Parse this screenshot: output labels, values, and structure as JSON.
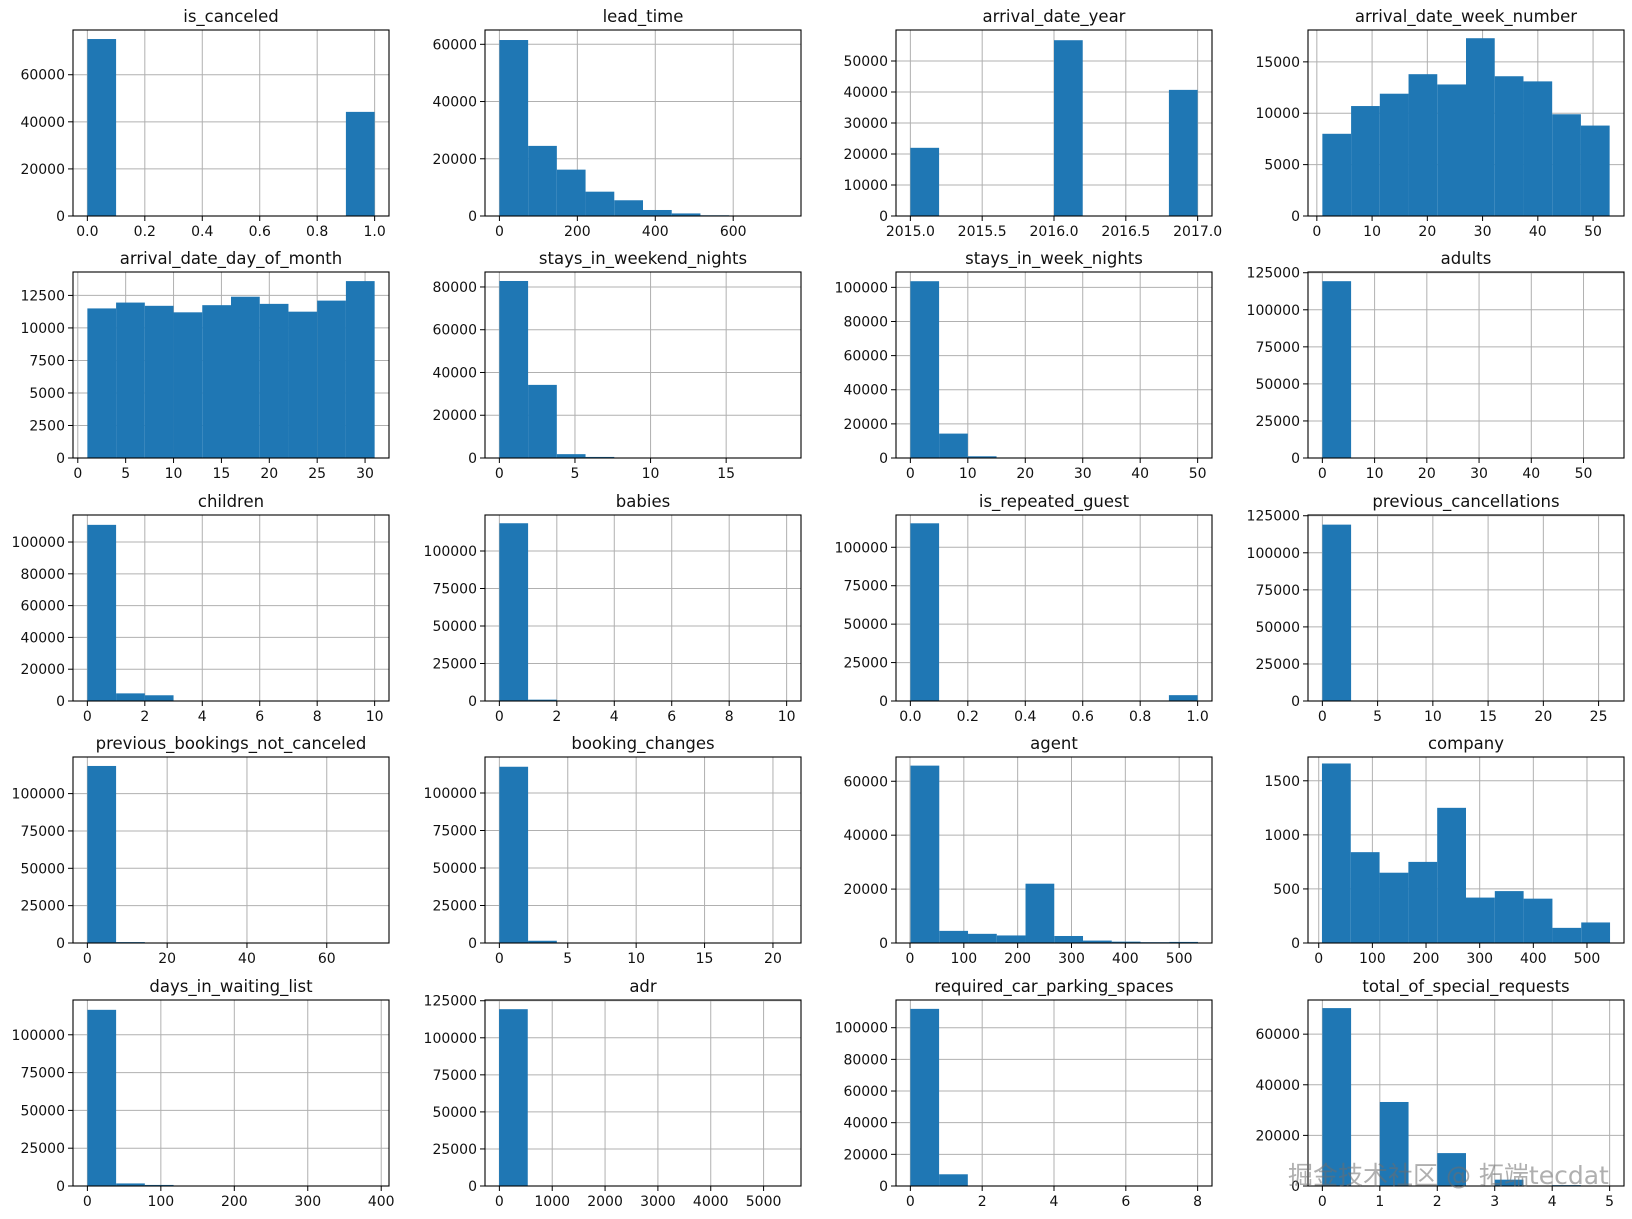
{
  "figure": {
    "bar_color": "#1f77b4",
    "grid_color": "#b0b0b0"
  },
  "watermark": "掘金技术社区 @ 拓端tecdat",
  "chart_data": [
    {
      "type": "bar",
      "title": "is_canceled",
      "xlim": [
        -0.05,
        1.05
      ],
      "ylim": [
        0,
        79000
      ],
      "xticks": [
        0,
        0.2,
        0.4,
        0.6,
        0.8,
        1.0
      ],
      "xtick_labels": [
        "0.0",
        "0.2",
        "0.4",
        "0.6",
        "0.8",
        "1.0"
      ],
      "yticks": [
        0,
        20000,
        40000,
        60000
      ],
      "ytick_labels": [
        "0",
        "20000",
        "40000",
        "60000"
      ],
      "bin_edges": [
        0,
        0.1,
        0.2,
        0.3,
        0.4,
        0.5,
        0.6,
        0.7,
        0.8,
        0.9,
        1.0
      ],
      "values": [
        75166,
        0,
        0,
        0,
        0,
        0,
        0,
        0,
        0,
        44224
      ]
    },
    {
      "type": "bar",
      "title": "lead_time",
      "xlim": [
        -37,
        774
      ],
      "ylim": [
        0,
        65000
      ],
      "xticks": [
        0,
        200,
        400,
        600
      ],
      "xtick_labels": [
        "0",
        "200",
        "400",
        "600"
      ],
      "yticks": [
        0,
        20000,
        40000,
        60000
      ],
      "ytick_labels": [
        "0",
        "20000",
        "40000",
        "60000"
      ],
      "bin_edges": [
        0,
        73.7,
        147.4,
        221.1,
        294.8,
        368.5,
        442.2,
        515.9,
        589.6,
        663.3,
        737
      ],
      "values": [
        61500,
        24500,
        16200,
        8500,
        5500,
        2100,
        900,
        250,
        100,
        60
      ]
    },
    {
      "type": "bar",
      "title": "arrival_date_year",
      "xlim": [
        2014.9,
        2017.1
      ],
      "ylim": [
        0,
        60000
      ],
      "xticks": [
        2015.0,
        2015.5,
        2016.0,
        2016.5,
        2017.0
      ],
      "xtick_labels": [
        "2015.0",
        "2015.5",
        "2016.0",
        "2016.5",
        "2017.0"
      ],
      "yticks": [
        0,
        10000,
        20000,
        30000,
        40000,
        50000
      ],
      "ytick_labels": [
        "0",
        "10000",
        "20000",
        "30000",
        "40000",
        "50000"
      ],
      "bin_edges": [
        2015.0,
        2015.2,
        2015.4,
        2015.6,
        2015.8,
        2016.0,
        2016.2,
        2016.4,
        2016.6,
        2016.8,
        2017.0
      ],
      "values": [
        21996,
        0,
        0,
        0,
        0,
        56707,
        0,
        0,
        0,
        40687
      ]
    },
    {
      "type": "bar",
      "title": "arrival_date_week_number",
      "xlim": [
        -1.6,
        55.6
      ],
      "ylim": [
        0,
        18100
      ],
      "xticks": [
        0,
        10,
        20,
        30,
        40,
        50
      ],
      "xtick_labels": [
        "0",
        "10",
        "20",
        "30",
        "40",
        "50"
      ],
      "yticks": [
        0,
        5000,
        10000,
        15000
      ],
      "ytick_labels": [
        "0",
        "5000",
        "10000",
        "15000"
      ],
      "bin_edges": [
        1,
        6.2,
        11.4,
        16.6,
        21.8,
        27,
        32.2,
        37.4,
        42.6,
        47.8,
        53
      ],
      "values": [
        8000,
        10700,
        11900,
        13800,
        12800,
        17300,
        13600,
        13100,
        9900,
        8800
      ]
    },
    {
      "type": "bar",
      "title": "arrival_date_day_of_month",
      "xlim": [
        -0.5,
        32.5
      ],
      "ylim": [
        0,
        14300
      ],
      "xticks": [
        0,
        5,
        10,
        15,
        20,
        25,
        30
      ],
      "xtick_labels": [
        "0",
        "5",
        "10",
        "15",
        "20",
        "25",
        "30"
      ],
      "yticks": [
        0,
        2500,
        5000,
        7500,
        10000,
        12500
      ],
      "ytick_labels": [
        "0",
        "2500",
        "5000",
        "7500",
        "10000",
        "12500"
      ],
      "bin_edges": [
        1,
        4,
        7,
        10,
        13,
        16,
        19,
        22,
        25,
        28,
        31
      ],
      "values": [
        11500,
        11950,
        11700,
        11200,
        11750,
        12400,
        11850,
        11250,
        12100,
        13600
      ]
    },
    {
      "type": "bar",
      "title": "stays_in_weekend_nights",
      "xlim": [
        -0.95,
        19.95
      ],
      "ylim": [
        0,
        87000
      ],
      "xticks": [
        0,
        5,
        10,
        15
      ],
      "xtick_labels": [
        "0",
        "5",
        "10",
        "15"
      ],
      "yticks": [
        0,
        20000,
        40000,
        60000,
        80000
      ],
      "ytick_labels": [
        "0",
        "20000",
        "40000",
        "60000",
        "80000"
      ],
      "bin_edges": [
        0,
        1.9,
        3.8,
        5.7,
        7.6,
        9.5,
        11.4,
        13.3,
        15.2,
        17.1,
        19
      ],
      "values": [
        82800,
        34200,
        1800,
        500,
        60,
        40,
        20,
        10,
        5,
        5
      ]
    },
    {
      "type": "bar",
      "title": "stays_in_week_nights",
      "xlim": [
        -2.5,
        52.5
      ],
      "ylim": [
        0,
        109000
      ],
      "xticks": [
        0,
        10,
        20,
        30,
        40,
        50
      ],
      "xtick_labels": [
        "0",
        "10",
        "20",
        "30",
        "40",
        "50"
      ],
      "yticks": [
        0,
        20000,
        40000,
        60000,
        80000,
        100000
      ],
      "ytick_labels": [
        "0",
        "20000",
        "40000",
        "60000",
        "80000",
        "100000"
      ],
      "bin_edges": [
        0,
        5,
        10,
        15,
        20,
        25,
        30,
        35,
        40,
        45,
        50
      ],
      "values": [
        103600,
        14300,
        1000,
        300,
        100,
        60,
        30,
        10,
        5,
        5
      ]
    },
    {
      "type": "bar",
      "title": "adults",
      "xlim": [
        -2.75,
        57.75
      ],
      "ylim": [
        0,
        125500
      ],
      "xticks": [
        0,
        10,
        20,
        30,
        40,
        50
      ],
      "xtick_labels": [
        "0",
        "10",
        "20",
        "30",
        "40",
        "50"
      ],
      "yticks": [
        0,
        25000,
        50000,
        75000,
        100000,
        125000
      ],
      "ytick_labels": [
        "0",
        "25000",
        "50000",
        "75000",
        "100000",
        "125000"
      ],
      "bin_edges": [
        0,
        5.5,
        11,
        16.5,
        22,
        27.5,
        33,
        38.5,
        44,
        49.5,
        55
      ],
      "values": [
        119300,
        0,
        0,
        0,
        50,
        60,
        0,
        0,
        0,
        10
      ]
    },
    {
      "type": "bar",
      "title": "children",
      "xlim": [
        -0.5,
        10.5
      ],
      "ylim": [
        0,
        117000
      ],
      "xticks": [
        0,
        2,
        4,
        6,
        8,
        10
      ],
      "xtick_labels": [
        "0",
        "2",
        "4",
        "6",
        "8",
        "10"
      ],
      "yticks": [
        0,
        20000,
        40000,
        60000,
        80000,
        100000
      ],
      "ytick_labels": [
        "0",
        "20000",
        "40000",
        "60000",
        "80000",
        "100000"
      ],
      "bin_edges": [
        0,
        1,
        2,
        3,
        4,
        5,
        6,
        7,
        8,
        9,
        10
      ],
      "values": [
        110800,
        4800,
        3600,
        80,
        0,
        0,
        0,
        0,
        0,
        2
      ]
    },
    {
      "type": "bar",
      "title": "babies",
      "xlim": [
        -0.5,
        10.5
      ],
      "ylim": [
        0,
        124000
      ],
      "xticks": [
        0,
        2,
        4,
        6,
        8,
        10
      ],
      "xtick_labels": [
        "0",
        "2",
        "4",
        "6",
        "8",
        "10"
      ],
      "yticks": [
        0,
        25000,
        50000,
        75000,
        100000
      ],
      "ytick_labels": [
        "0",
        "25000",
        "50000",
        "75000",
        "100000"
      ],
      "bin_edges": [
        0,
        1,
        2,
        3,
        4,
        5,
        6,
        7,
        8,
        9,
        10
      ],
      "values": [
        118500,
        900,
        20,
        0,
        0,
        0,
        0,
        0,
        0,
        2
      ]
    },
    {
      "type": "bar",
      "title": "is_repeated_guest",
      "xlim": [
        -0.05,
        1.05
      ],
      "ylim": [
        0,
        121000
      ],
      "xticks": [
        0,
        0.2,
        0.4,
        0.6,
        0.8,
        1.0
      ],
      "xtick_labels": [
        "0.0",
        "0.2",
        "0.4",
        "0.6",
        "0.8",
        "1.0"
      ],
      "yticks": [
        0,
        25000,
        50000,
        75000,
        100000
      ],
      "ytick_labels": [
        "0",
        "25000",
        "50000",
        "75000",
        "100000"
      ],
      "bin_edges": [
        0,
        0.1,
        0.2,
        0.3,
        0.4,
        0.5,
        0.6,
        0.7,
        0.8,
        0.9,
        1.0
      ],
      "values": [
        115600,
        0,
        0,
        0,
        0,
        0,
        0,
        0,
        0,
        3800
      ]
    },
    {
      "type": "bar",
      "title": "previous_cancellations",
      "xlim": [
        -1.3,
        27.3
      ],
      "ylim": [
        0,
        125500
      ],
      "xticks": [
        0,
        5,
        10,
        15,
        20,
        25
      ],
      "xtick_labels": [
        "0",
        "5",
        "10",
        "15",
        "20",
        "25"
      ],
      "yticks": [
        0,
        25000,
        50000,
        75000,
        100000,
        125000
      ],
      "ytick_labels": [
        "0",
        "25000",
        "50000",
        "75000",
        "100000",
        "125000"
      ],
      "bin_edges": [
        0,
        2.6,
        5.2,
        7.8,
        10.4,
        13,
        15.6,
        18.2,
        20.8,
        23.4,
        26
      ],
      "values": [
        119000,
        300,
        30,
        0,
        30,
        20,
        0,
        0,
        0,
        30
      ]
    },
    {
      "type": "bar",
      "title": "previous_bookings_not_canceled",
      "xlim": [
        -3.6,
        75.6
      ],
      "ylim": [
        0,
        124500
      ],
      "xticks": [
        0,
        20,
        40,
        60
      ],
      "xtick_labels": [
        "0",
        "20",
        "40",
        "60"
      ],
      "yticks": [
        0,
        25000,
        50000,
        75000,
        100000
      ],
      "ytick_labels": [
        "0",
        "25000",
        "50000",
        "75000",
        "100000"
      ],
      "bin_edges": [
        0,
        7.2,
        14.4,
        21.6,
        28.8,
        36,
        43.2,
        50.4,
        57.6,
        64.8,
        72
      ],
      "values": [
        118500,
        600,
        150,
        50,
        30,
        20,
        10,
        5,
        5,
        5
      ]
    },
    {
      "type": "bar",
      "title": "booking_changes",
      "xlim": [
        -1.05,
        22.05
      ],
      "ylim": [
        0,
        124000
      ],
      "xticks": [
        0,
        5,
        10,
        15,
        20
      ],
      "xtick_labels": [
        "0",
        "5",
        "10",
        "15",
        "20"
      ],
      "yticks": [
        0,
        25000,
        50000,
        75000,
        100000
      ],
      "ytick_labels": [
        "0",
        "25000",
        "50000",
        "75000",
        "100000"
      ],
      "bin_edges": [
        0,
        2.1,
        4.2,
        6.3,
        8.4,
        10.5,
        12.6,
        14.7,
        16.8,
        18.9,
        21
      ],
      "values": [
        117500,
        1500,
        300,
        60,
        20,
        10,
        5,
        2,
        2,
        2
      ]
    },
    {
      "type": "bar",
      "title": "agent",
      "xlim": [
        -26,
        561
      ],
      "ylim": [
        0,
        69000
      ],
      "xticks": [
        0,
        100,
        200,
        300,
        400,
        500
      ],
      "xtick_labels": [
        "0",
        "100",
        "200",
        "300",
        "400",
        "500"
      ],
      "yticks": [
        0,
        20000,
        40000,
        60000
      ],
      "ytick_labels": [
        "0",
        "20000",
        "40000",
        "60000"
      ],
      "bin_edges": [
        1,
        54.4,
        107.8,
        161.2,
        214.6,
        268,
        321.4,
        374.8,
        428.2,
        481.6,
        535
      ],
      "values": [
        65800,
        4500,
        3400,
        2800,
        22000,
        2600,
        900,
        500,
        300,
        400
      ]
    },
    {
      "type": "bar",
      "title": "company",
      "xlim": [
        -20,
        569
      ],
      "ylim": [
        0,
        1720
      ],
      "xticks": [
        0,
        100,
        200,
        300,
        400,
        500
      ],
      "xtick_labels": [
        "0",
        "100",
        "200",
        "300",
        "400",
        "500"
      ],
      "yticks": [
        0,
        500,
        1000,
        1500
      ],
      "ytick_labels": [
        "0",
        "500",
        "1000",
        "1500"
      ],
      "bin_edges": [
        6,
        59.7,
        113.4,
        167.1,
        220.8,
        274.5,
        328.2,
        381.9,
        435.6,
        489.3,
        543
      ],
      "values": [
        1660,
        840,
        650,
        750,
        1250,
        420,
        480,
        410,
        140,
        190
      ]
    },
    {
      "type": "bar",
      "title": "days_in_waiting_list",
      "xlim": [
        -19.6,
        410.6
      ],
      "ylim": [
        0,
        123000
      ],
      "xticks": [
        0,
        100,
        200,
        300,
        400
      ],
      "xtick_labels": [
        "0",
        "100",
        "200",
        "300",
        "400"
      ],
      "yticks": [
        0,
        25000,
        50000,
        75000,
        100000
      ],
      "ytick_labels": [
        "0",
        "25000",
        "50000",
        "75000",
        "100000"
      ],
      "bin_edges": [
        0,
        39.1,
        78.2,
        117.3,
        156.4,
        195.5,
        234.6,
        273.7,
        312.8,
        351.9,
        391
      ],
      "values": [
        116500,
        1700,
        700,
        200,
        50,
        40,
        20,
        20,
        10,
        20
      ]
    },
    {
      "type": "bar",
      "title": "adr",
      "xlim": [
        -272,
        5708
      ],
      "ylim": [
        0,
        125500
      ],
      "xticks": [
        0,
        1000,
        2000,
        3000,
        4000,
        5000
      ],
      "xtick_labels": [
        "0",
        "1000",
        "2000",
        "3000",
        "4000",
        "5000"
      ],
      "yticks": [
        0,
        25000,
        50000,
        75000,
        100000,
        125000
      ],
      "ytick_labels": [
        "0",
        "25000",
        "50000",
        "75000",
        "100000",
        "125000"
      ],
      "bin_edges": [
        -6,
        537,
        1080,
        1623,
        2166,
        2709,
        3252,
        3795,
        4338,
        4881,
        5424
      ],
      "values": [
        119300,
        0,
        0,
        0,
        0,
        0,
        0,
        0,
        0,
        1
      ]
    },
    {
      "type": "bar",
      "title": "required_car_parking_spaces",
      "xlim": [
        -0.4,
        8.4
      ],
      "ylim": [
        0,
        117500
      ],
      "xticks": [
        0,
        2,
        4,
        6,
        8
      ],
      "xtick_labels": [
        "0",
        "2",
        "4",
        "6",
        "8"
      ],
      "yticks": [
        0,
        20000,
        40000,
        60000,
        80000,
        100000
      ],
      "ytick_labels": [
        "0",
        "20000",
        "40000",
        "60000",
        "80000",
        "100000"
      ],
      "bin_edges": [
        0,
        0.8,
        1.6,
        2.4,
        3.2,
        4.0,
        4.8,
        5.6,
        6.4,
        7.2,
        8.0
      ],
      "values": [
        111900,
        7400,
        30,
        20,
        0,
        0,
        0,
        0,
        0,
        2
      ]
    },
    {
      "type": "bar",
      "title": "total_of_special_requests",
      "xlim": [
        -0.25,
        5.25
      ],
      "ylim": [
        0,
        73500
      ],
      "xticks": [
        0,
        1,
        2,
        3,
        4,
        5
      ],
      "xtick_labels": [
        "0",
        "1",
        "2",
        "3",
        "4",
        "5"
      ],
      "yticks": [
        0,
        20000,
        40000,
        60000
      ],
      "ytick_labels": [
        "0",
        "20000",
        "40000",
        "60000"
      ],
      "bin_edges": [
        0,
        0.5,
        1.0,
        1.5,
        2.0,
        2.5,
        3.0,
        3.5,
        4.0,
        4.5,
        5.0
      ],
      "values": [
        70300,
        0,
        33200,
        0,
        13000,
        0,
        2500,
        0,
        340,
        40
      ]
    }
  ]
}
